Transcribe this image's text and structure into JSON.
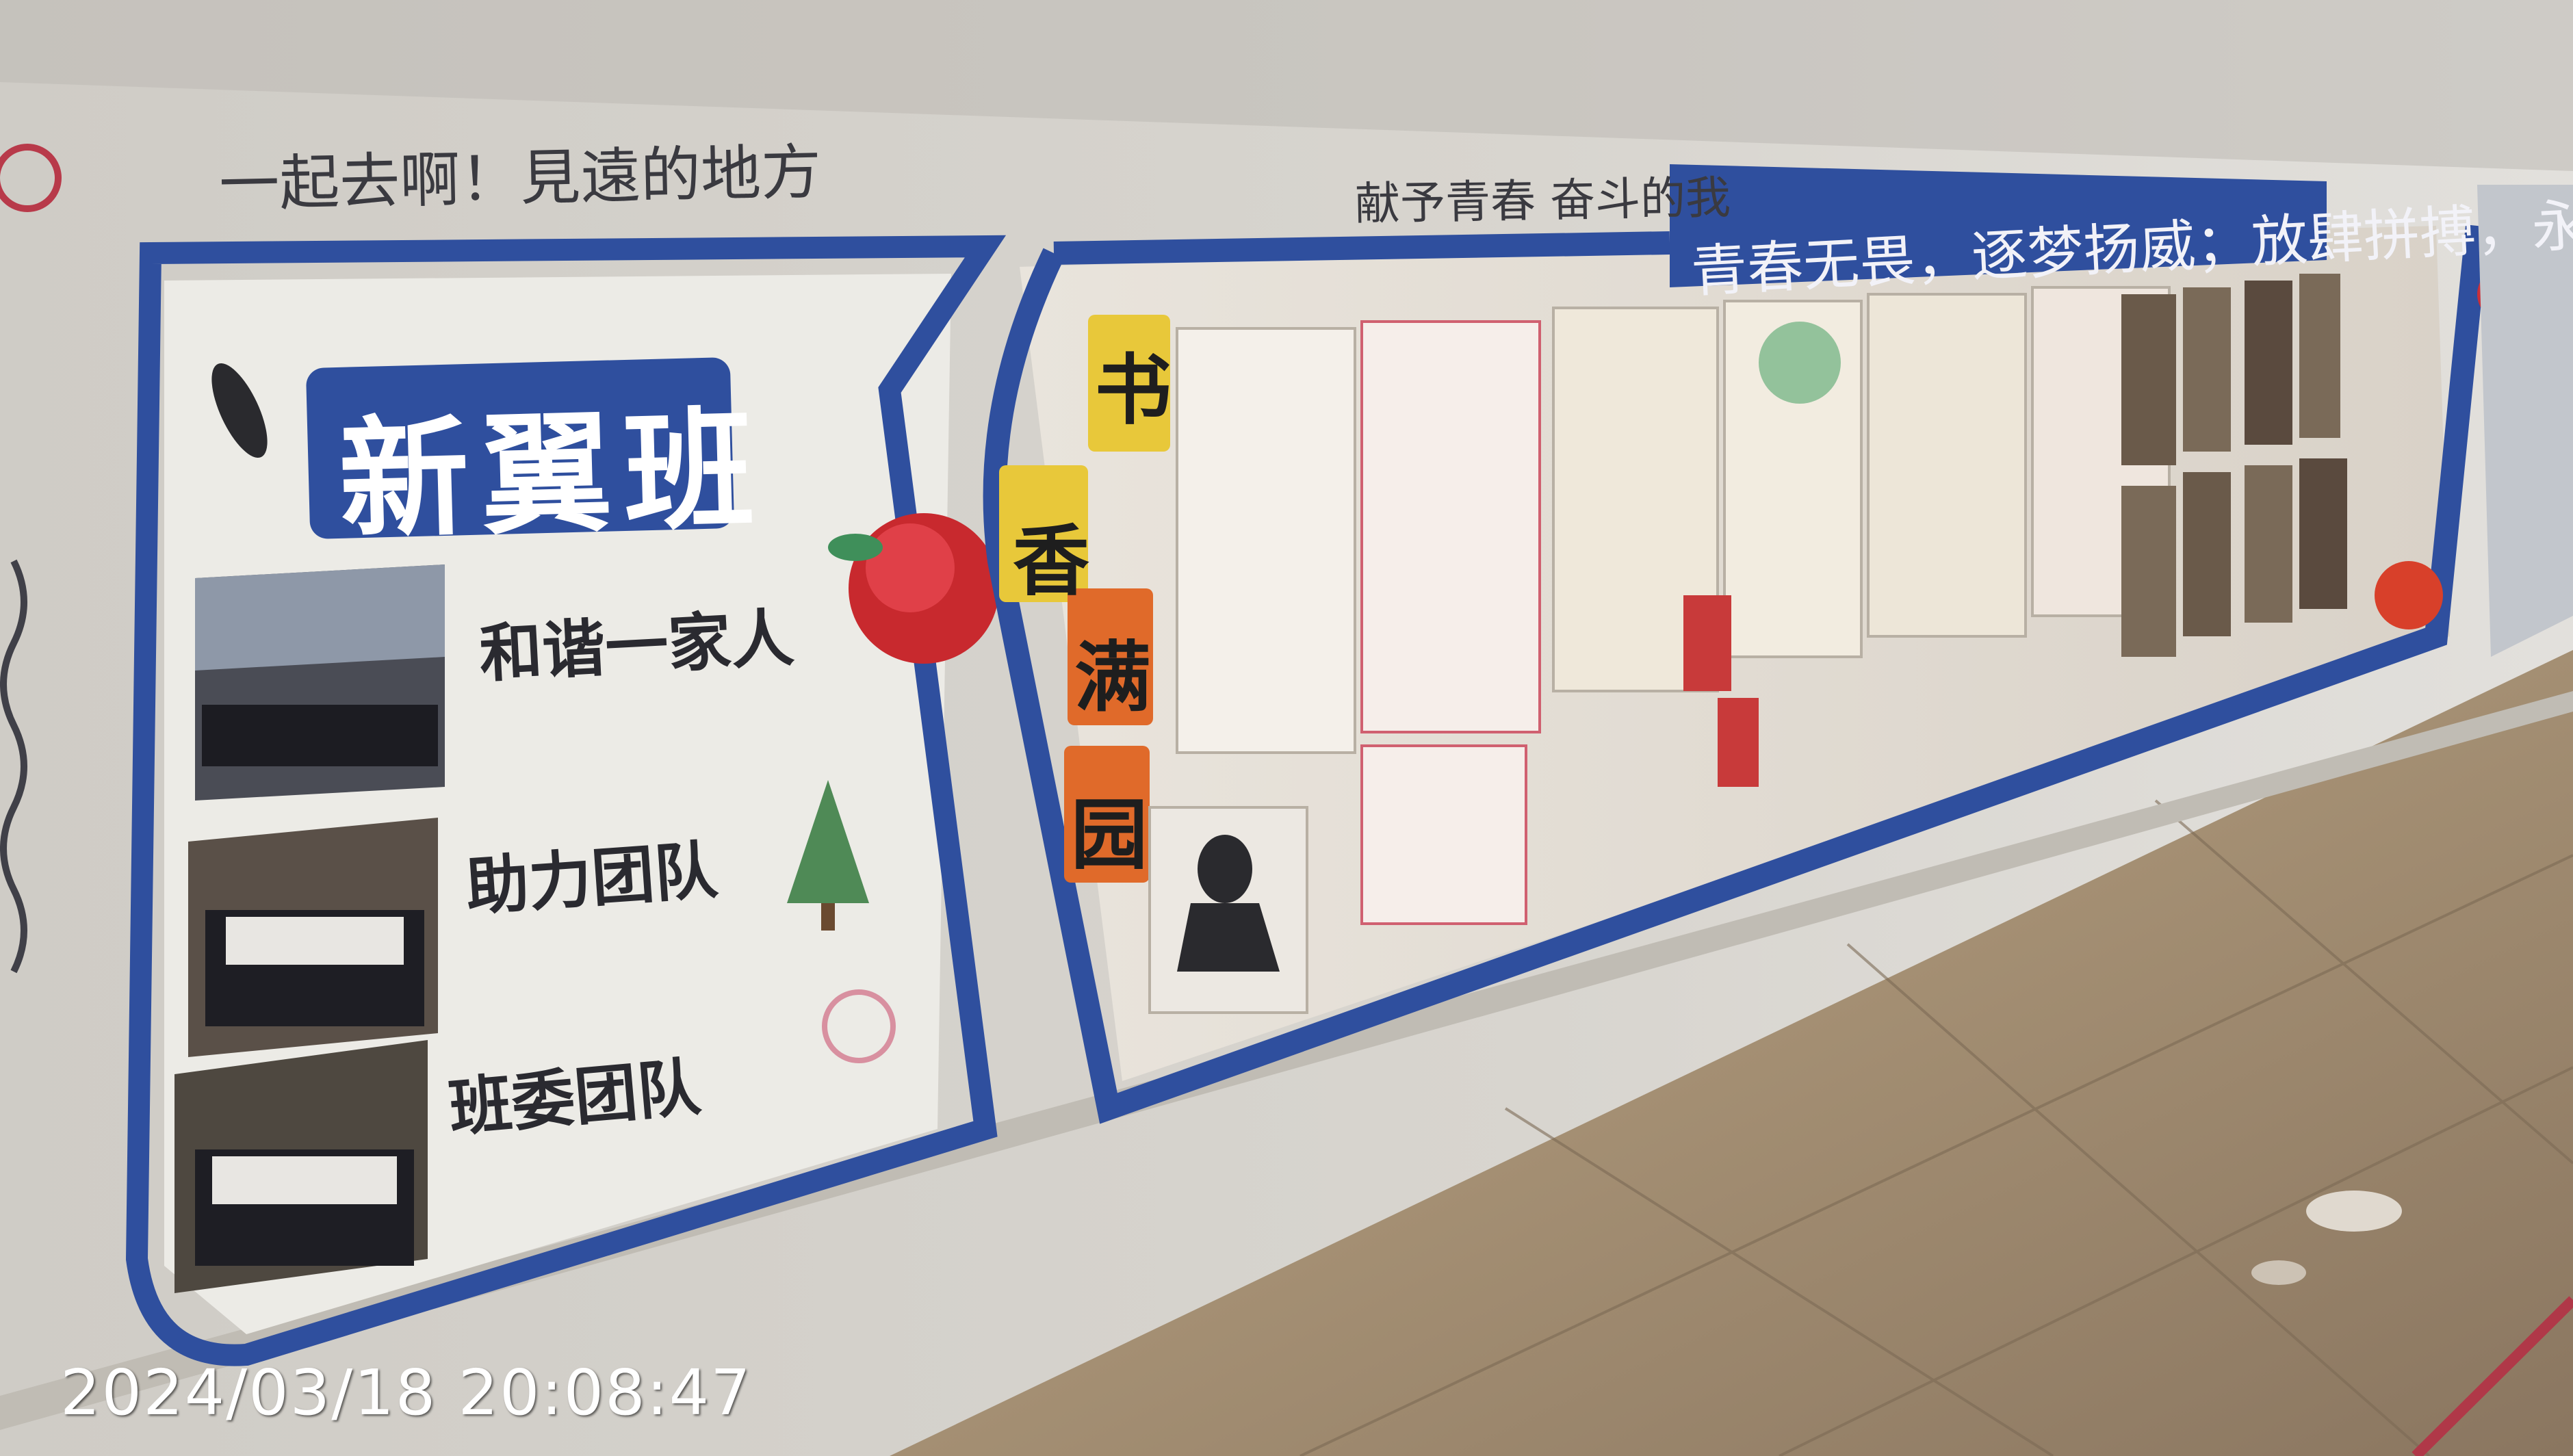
{
  "scene": {
    "description_free": true,
    "colors": {
      "wall": "#d6d3cd",
      "board_blue": "#2f4f9e",
      "floor": "#9a8468",
      "paper": "#efede8"
    }
  },
  "board": {
    "top_slogan": "一起去啊！見遠的地方",
    "dedication": "献予青春 奋斗的我",
    "banner": "青春无畏，逐梦扬威；放肆拼搏，永不言败",
    "class_title": "新翼班",
    "captions": [
      "和谐一家人",
      "助力团队",
      "班委团队"
    ],
    "tiles": [
      "书",
      "香",
      "满",
      "园"
    ]
  },
  "overlay": {
    "timestamp": "2024/03/18  20:08:47"
  }
}
